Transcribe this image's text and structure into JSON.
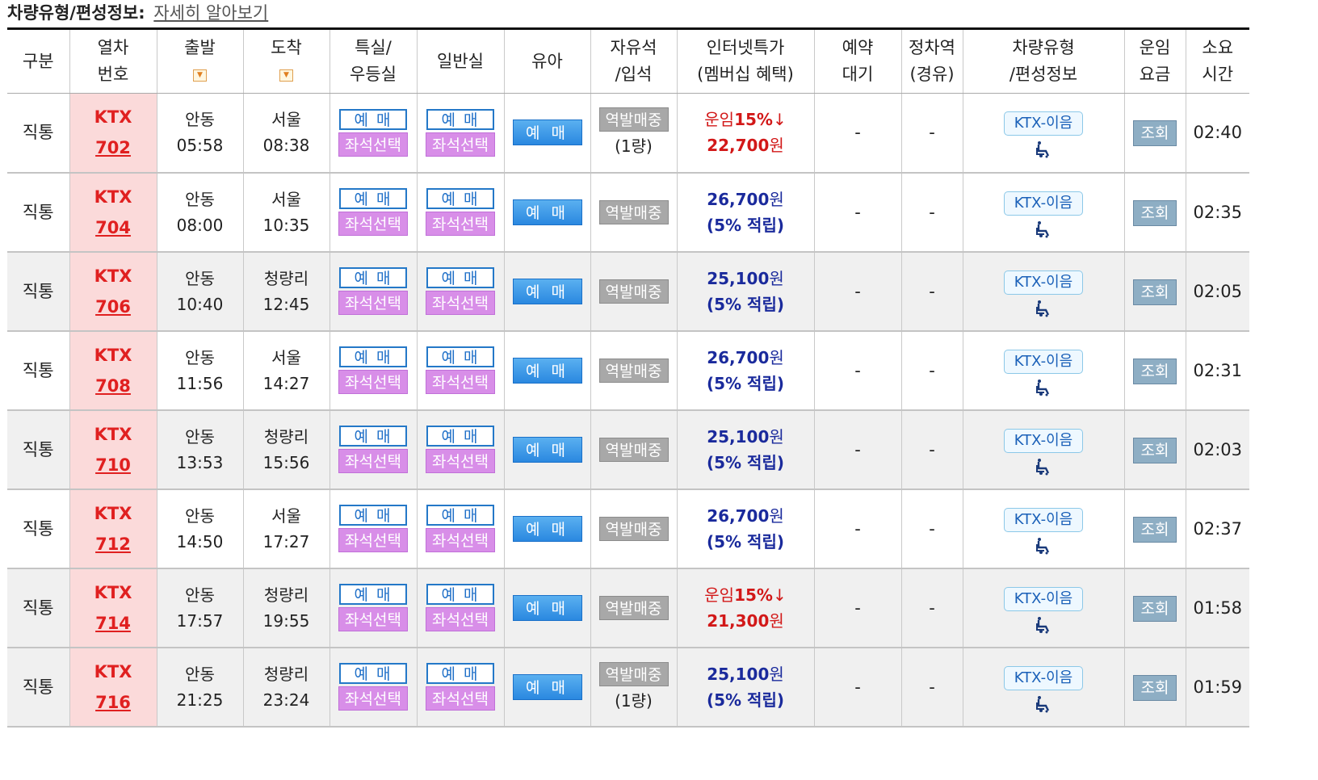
{
  "header": {
    "label": "차량유형/편성정보:",
    "link": "자세히 알아보기"
  },
  "columns": [
    {
      "id": "type",
      "line1": "구분",
      "line2": ""
    },
    {
      "id": "train",
      "line1": "열차",
      "line2": "번호"
    },
    {
      "id": "dep",
      "line1": "출발",
      "line2": ""
    },
    {
      "id": "arr",
      "line1": "도착",
      "line2": ""
    },
    {
      "id": "special",
      "line1": "특실/",
      "line2": "우등실"
    },
    {
      "id": "general",
      "line1": "일반실",
      "line2": ""
    },
    {
      "id": "infant",
      "line1": "유아",
      "line2": ""
    },
    {
      "id": "free",
      "line1": "자유석",
      "line2": "/입석"
    },
    {
      "id": "internet",
      "line1": "인터넷특가",
      "line2": "(멤버십 혜택)"
    },
    {
      "id": "reserve",
      "line1": "예약",
      "line2": "대기"
    },
    {
      "id": "stop",
      "line1": "정차역",
      "line2": "(경유)"
    },
    {
      "id": "vehicle",
      "line1": "차량유형",
      "line2": "/편성정보"
    },
    {
      "id": "fare",
      "line1": "운임",
      "line2": "요금"
    },
    {
      "id": "duration",
      "line1": "소요",
      "line2": "시간"
    }
  ],
  "sort_icon": "down-arrow-sort-icon",
  "labels": {
    "reserve_spaced": "예 매",
    "seat_select": "좌석선택",
    "station_sale": "역발매중",
    "vehicle_badge": "KTX-이음",
    "wheelchair_icon": "wheelchair-icon",
    "inquiry": "조회"
  },
  "rows": [
    {
      "type": "직통",
      "train_prefix": "KTX",
      "train_no": "702",
      "dep_station": "안동",
      "dep_time": "05:58",
      "arr_station": "서울",
      "arr_time": "08:38",
      "free_sub": "(1량)",
      "promo": true,
      "promo_text": "운임",
      "promo_pct": "15%",
      "promo_arrow": "↓",
      "price_num": "22,700",
      "price_unit": "원",
      "benefit_text": "",
      "reserve": "-",
      "stop": "-",
      "duration": "02:40",
      "shaded": false
    },
    {
      "type": "직통",
      "train_prefix": "KTX",
      "train_no": "704",
      "dep_station": "안동",
      "dep_time": "08:00",
      "arr_station": "서울",
      "arr_time": "10:35",
      "free_sub": "",
      "promo": false,
      "promo_text": "",
      "promo_pct": "",
      "promo_arrow": "",
      "price_num": "26,700",
      "price_unit": "원",
      "benefit_text": "(5% 적립)",
      "reserve": "-",
      "stop": "-",
      "duration": "02:35",
      "shaded": false
    },
    {
      "type": "직통",
      "train_prefix": "KTX",
      "train_no": "706",
      "dep_station": "안동",
      "dep_time": "10:40",
      "arr_station": "청량리",
      "arr_time": "12:45",
      "free_sub": "",
      "promo": false,
      "promo_text": "",
      "promo_pct": "",
      "promo_arrow": "",
      "price_num": "25,100",
      "price_unit": "원",
      "benefit_text": "(5% 적립)",
      "reserve": "-",
      "stop": "-",
      "duration": "02:05",
      "shaded": true
    },
    {
      "type": "직통",
      "train_prefix": "KTX",
      "train_no": "708",
      "dep_station": "안동",
      "dep_time": "11:56",
      "arr_station": "서울",
      "arr_time": "14:27",
      "free_sub": "",
      "promo": false,
      "promo_text": "",
      "promo_pct": "",
      "promo_arrow": "",
      "price_num": "26,700",
      "price_unit": "원",
      "benefit_text": "(5% 적립)",
      "reserve": "-",
      "stop": "-",
      "duration": "02:31",
      "shaded": false
    },
    {
      "type": "직통",
      "train_prefix": "KTX",
      "train_no": "710",
      "dep_station": "안동",
      "dep_time": "13:53",
      "arr_station": "청량리",
      "arr_time": "15:56",
      "free_sub": "",
      "promo": false,
      "promo_text": "",
      "promo_pct": "",
      "promo_arrow": "",
      "price_num": "25,100",
      "price_unit": "원",
      "benefit_text": "(5% 적립)",
      "reserve": "-",
      "stop": "-",
      "duration": "02:03",
      "shaded": true
    },
    {
      "type": "직통",
      "train_prefix": "KTX",
      "train_no": "712",
      "dep_station": "안동",
      "dep_time": "14:50",
      "arr_station": "서울",
      "arr_time": "17:27",
      "free_sub": "",
      "promo": false,
      "promo_text": "",
      "promo_pct": "",
      "promo_arrow": "",
      "price_num": "26,700",
      "price_unit": "원",
      "benefit_text": "(5% 적립)",
      "reserve": "-",
      "stop": "-",
      "duration": "02:37",
      "shaded": false
    },
    {
      "type": "직통",
      "train_prefix": "KTX",
      "train_no": "714",
      "dep_station": "안동",
      "dep_time": "17:57",
      "arr_station": "청량리",
      "arr_time": "19:55",
      "free_sub": "",
      "promo": true,
      "promo_text": "운임",
      "promo_pct": "15%",
      "promo_arrow": "↓",
      "price_num": "21,300",
      "price_unit": "원",
      "benefit_text": "",
      "reserve": "-",
      "stop": "-",
      "duration": "01:58",
      "shaded": true
    },
    {
      "type": "직통",
      "train_prefix": "KTX",
      "train_no": "716",
      "dep_station": "안동",
      "dep_time": "21:25",
      "arr_station": "청량리",
      "arr_time": "23:24",
      "free_sub": "(1량)",
      "promo": false,
      "promo_text": "",
      "promo_pct": "",
      "promo_arrow": "",
      "price_num": "25,100",
      "price_unit": "원",
      "benefit_text": "(5% 적립)",
      "reserve": "-",
      "stop": "-",
      "duration": "01:59",
      "shaded": true
    }
  ]
}
